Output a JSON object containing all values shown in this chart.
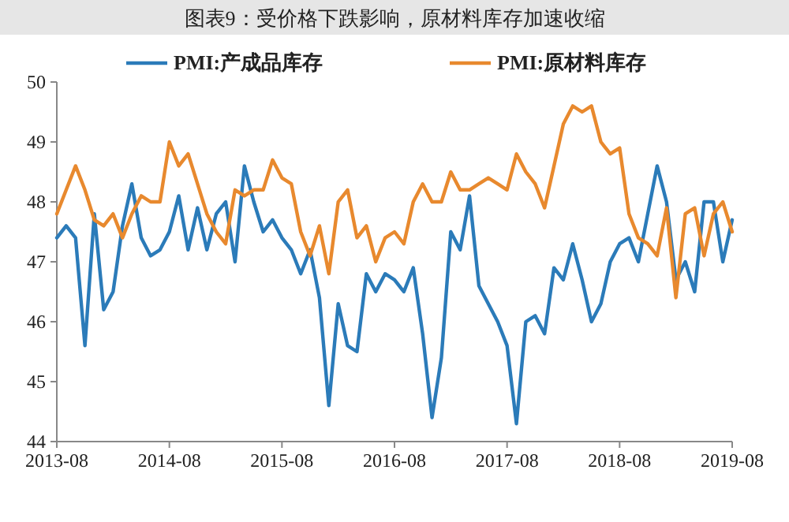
{
  "chart_data": {
    "type": "line",
    "title": "图表9：受价格下跌影响，原材料库存加速收缩",
    "x": [
      "2013-08",
      "2013-09",
      "2013-10",
      "2013-11",
      "2013-12",
      "2014-01",
      "2014-02",
      "2014-03",
      "2014-04",
      "2014-05",
      "2014-06",
      "2014-07",
      "2014-08",
      "2014-09",
      "2014-10",
      "2014-11",
      "2014-12",
      "2015-01",
      "2015-02",
      "2015-03",
      "2015-04",
      "2015-05",
      "2015-06",
      "2015-07",
      "2015-08",
      "2015-09",
      "2015-10",
      "2015-11",
      "2015-12",
      "2016-01",
      "2016-02",
      "2016-03",
      "2016-04",
      "2016-05",
      "2016-06",
      "2016-07",
      "2016-08",
      "2016-09",
      "2016-10",
      "2016-11",
      "2016-12",
      "2017-01",
      "2017-02",
      "2017-03",
      "2017-04",
      "2017-05",
      "2017-06",
      "2017-07",
      "2017-08",
      "2017-09",
      "2017-10",
      "2017-11",
      "2017-12",
      "2018-01",
      "2018-02",
      "2018-03",
      "2018-04",
      "2018-05",
      "2018-06",
      "2018-07",
      "2018-08",
      "2018-09",
      "2018-10",
      "2018-11",
      "2018-12",
      "2019-01",
      "2019-02",
      "2019-03",
      "2019-04",
      "2019-05",
      "2019-06",
      "2019-07",
      "2019-08"
    ],
    "series": [
      {
        "name": "PMI:产成品库存",
        "color": "#2b7bb9",
        "values": [
          47.4,
          47.6,
          47.4,
          45.6,
          47.8,
          46.2,
          46.5,
          47.6,
          48.3,
          47.4,
          47.1,
          47.2,
          47.5,
          48.1,
          47.2,
          47.9,
          47.2,
          47.8,
          48.0,
          47.0,
          48.6,
          48.0,
          47.5,
          47.7,
          47.4,
          47.2,
          46.8,
          47.2,
          46.4,
          44.6,
          46.3,
          45.6,
          45.5,
          46.8,
          46.5,
          46.8,
          46.7,
          46.5,
          46.9,
          45.8,
          44.4,
          45.4,
          47.5,
          47.2,
          48.1,
          46.6,
          46.3,
          46.0,
          45.6,
          44.3,
          46.0,
          46.1,
          45.8,
          46.9,
          46.7,
          47.3,
          46.7,
          46.0,
          46.3,
          47.0,
          47.3,
          47.4,
          47.0,
          47.8,
          48.6,
          48.0,
          46.7,
          47.0,
          46.5,
          48.0,
          48.0,
          47.0,
          47.7
        ]
      },
      {
        "name": "PMI:原材料库存",
        "color": "#e8892e",
        "values": [
          47.8,
          48.2,
          48.6,
          48.2,
          47.7,
          47.6,
          47.8,
          47.4,
          47.8,
          48.1,
          48.0,
          48.0,
          49.0,
          48.6,
          48.8,
          48.3,
          47.8,
          47.5,
          47.3,
          48.2,
          48.1,
          48.2,
          48.2,
          48.7,
          48.4,
          48.3,
          47.5,
          47.1,
          47.6,
          46.8,
          48.0,
          48.2,
          47.4,
          47.6,
          47.0,
          47.4,
          47.5,
          47.3,
          48.0,
          48.3,
          48.0,
          48.0,
          48.5,
          48.2,
          48.2,
          48.3,
          48.4,
          48.3,
          48.2,
          48.8,
          48.5,
          48.3,
          47.9,
          48.6,
          49.3,
          49.6,
          49.5,
          49.6,
          49.0,
          48.8,
          48.9,
          47.8,
          47.4,
          47.3,
          47.1,
          47.9,
          46.4,
          47.8,
          47.9,
          47.1,
          47.8,
          48.0,
          47.5
        ]
      }
    ],
    "xlim": [
      "2013-08",
      "2019-08"
    ],
    "xticks": [
      "2013-08",
      "2014-08",
      "2015-08",
      "2016-08",
      "2017-08",
      "2018-08",
      "2019-08"
    ],
    "ylim": [
      44,
      50
    ],
    "yticks": [
      44,
      45,
      46,
      47,
      48,
      49,
      50
    ],
    "legend": "top",
    "grid": false,
    "marker": "none",
    "line_style": "solid"
  }
}
